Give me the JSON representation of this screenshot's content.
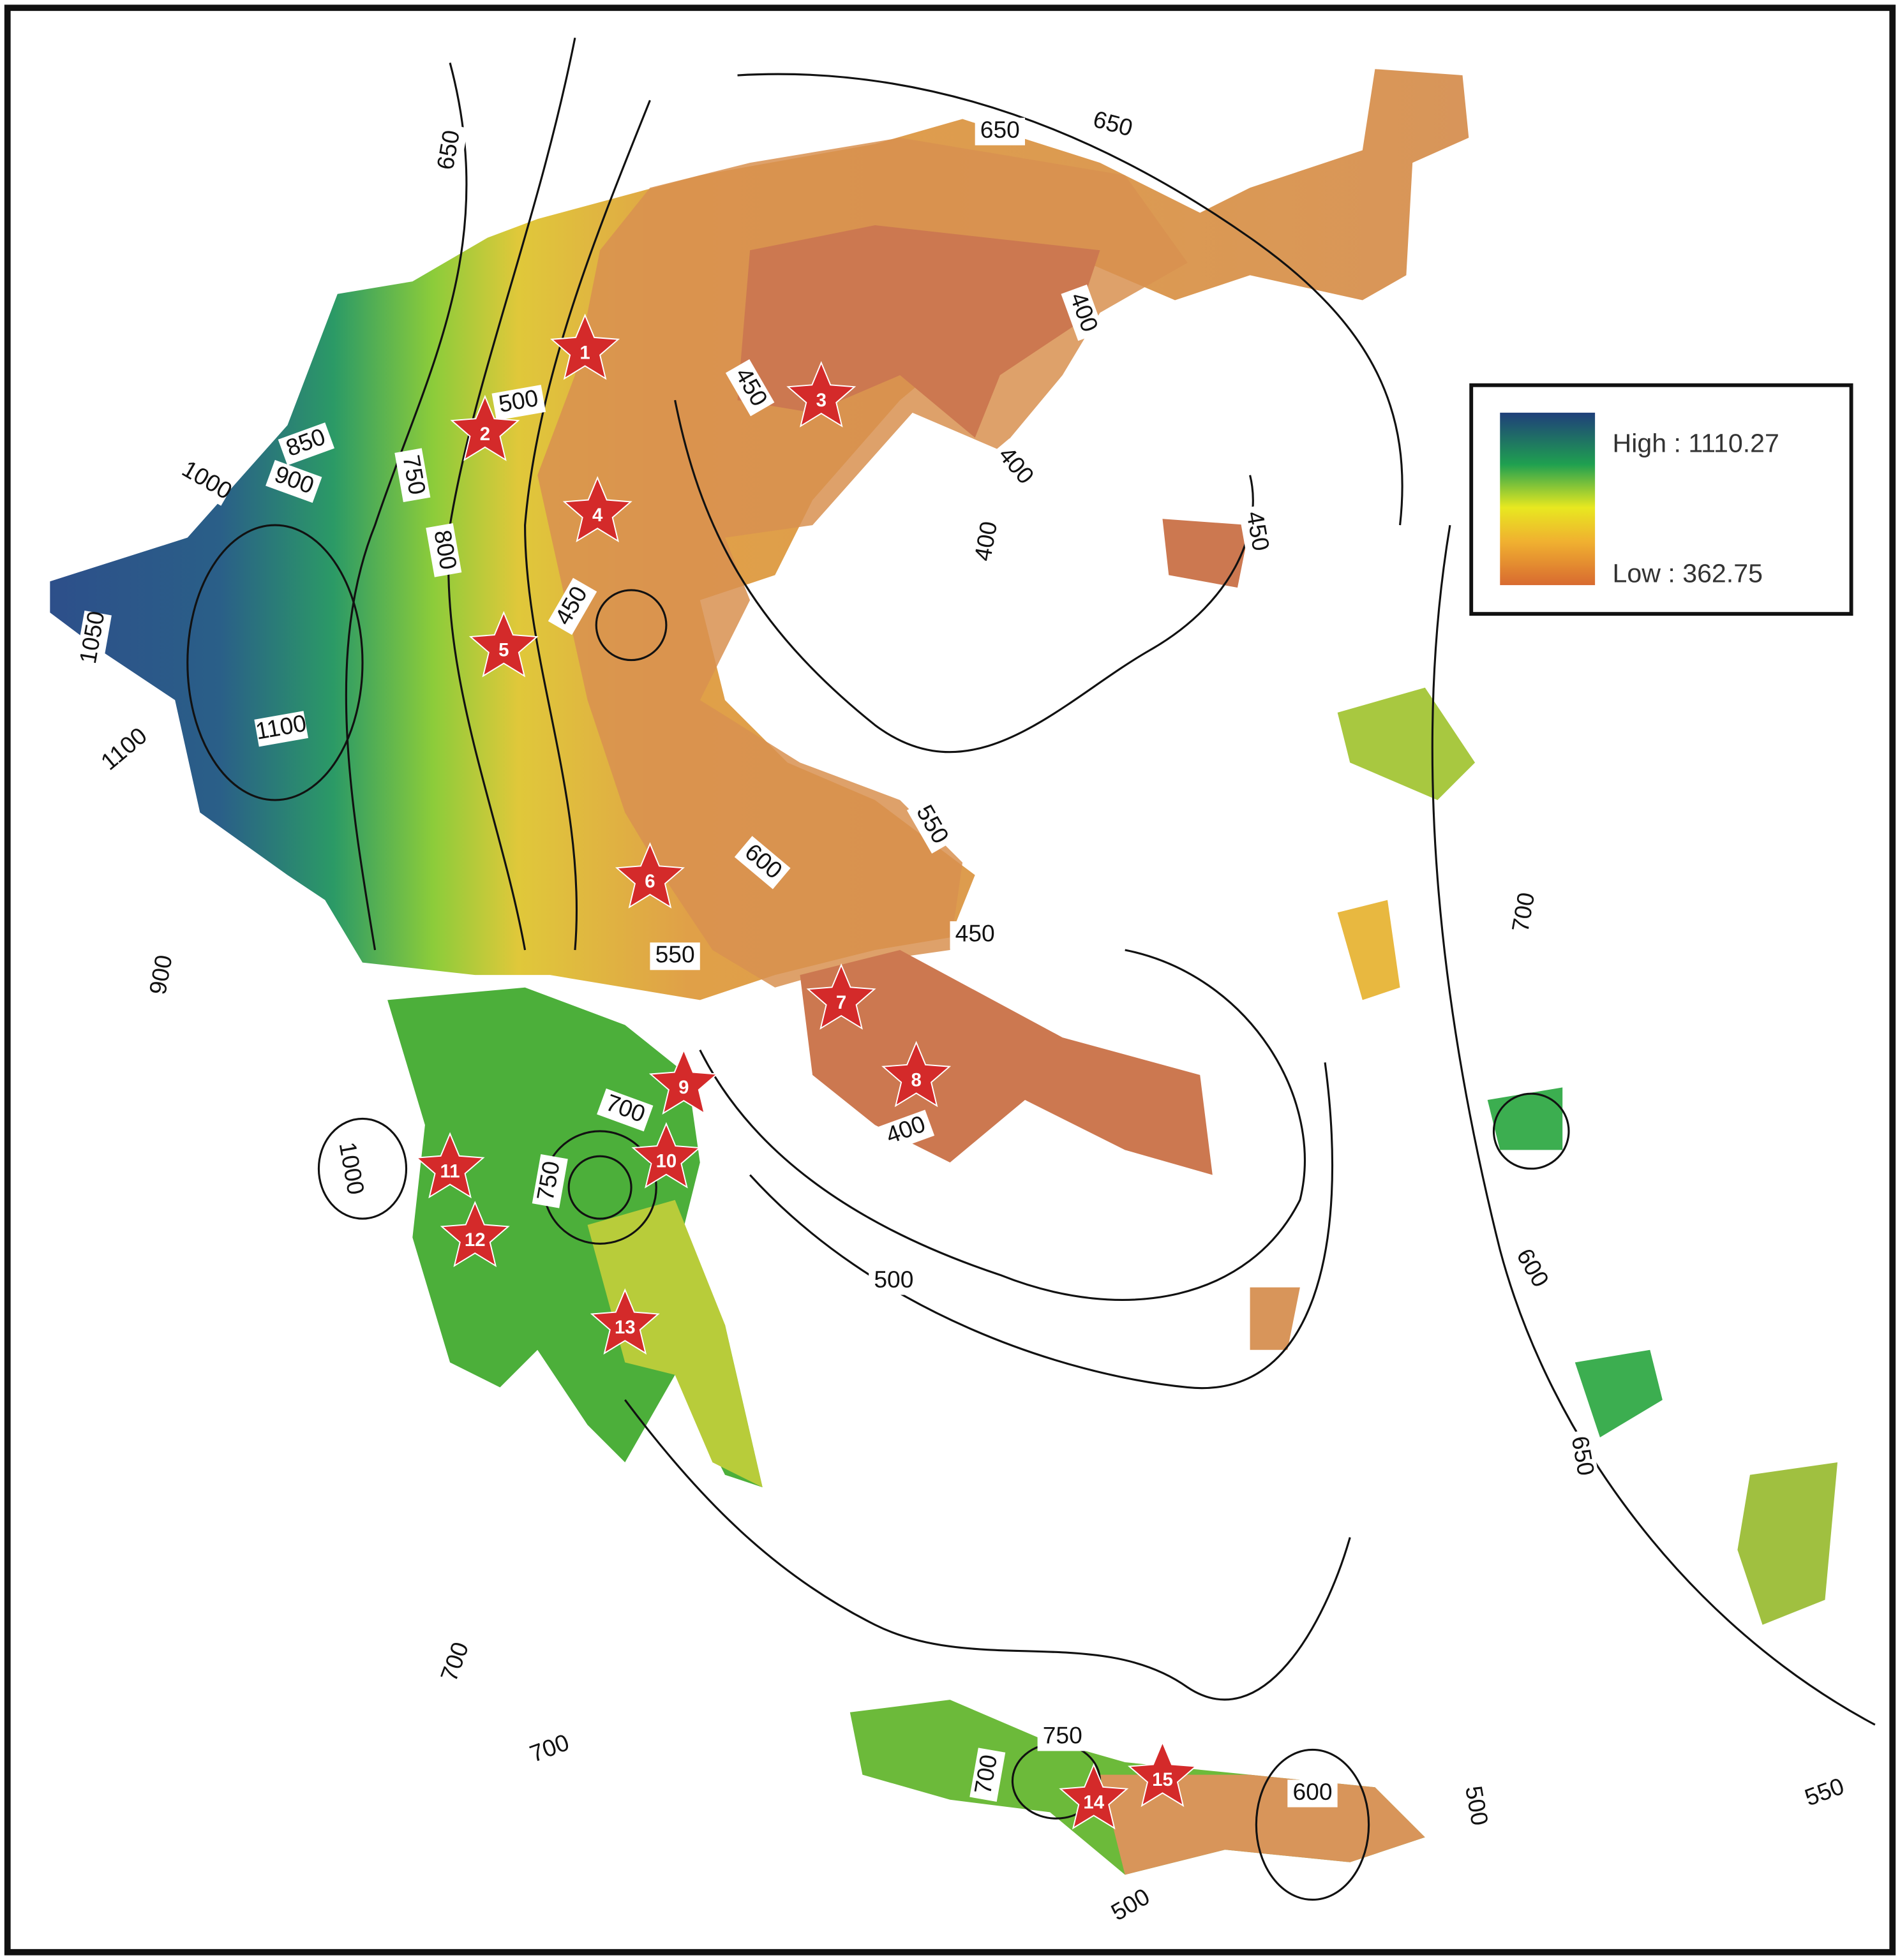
{
  "legend": {
    "high": "High : 1110.27",
    "low": "Low : 362.75"
  },
  "stations": [
    "1",
    "2",
    "3",
    "4",
    "5",
    "6",
    "7",
    "8",
    "9",
    "10",
    "11",
    "12",
    "13",
    "14",
    "15"
  ],
  "contours": [
    {
      "label": "650"
    },
    {
      "label": "650"
    },
    {
      "label": "650"
    },
    {
      "label": "500"
    },
    {
      "label": "450"
    },
    {
      "label": "400"
    },
    {
      "label": "400"
    },
    {
      "label": "400"
    },
    {
      "label": "450"
    },
    {
      "label": "850"
    },
    {
      "label": "1000"
    },
    {
      "label": "900"
    },
    {
      "label": "750"
    },
    {
      "label": "800"
    },
    {
      "label": "450"
    },
    {
      "label": "1050"
    },
    {
      "label": "1100"
    },
    {
      "label": "1100"
    },
    {
      "label": "550"
    },
    {
      "label": "600"
    },
    {
      "label": "450"
    },
    {
      "label": "550"
    },
    {
      "label": "700"
    },
    {
      "label": "900"
    },
    {
      "label": "700"
    },
    {
      "label": "400"
    },
    {
      "label": "750"
    },
    {
      "label": "1000"
    },
    {
      "label": "500"
    },
    {
      "label": "600"
    },
    {
      "label": "650"
    },
    {
      "label": "700"
    },
    {
      "label": "700"
    },
    {
      "label": "750"
    },
    {
      "label": "600"
    },
    {
      "label": "500"
    },
    {
      "label": "550"
    },
    {
      "label": "500"
    },
    {
      "label": "700"
    }
  ]
}
